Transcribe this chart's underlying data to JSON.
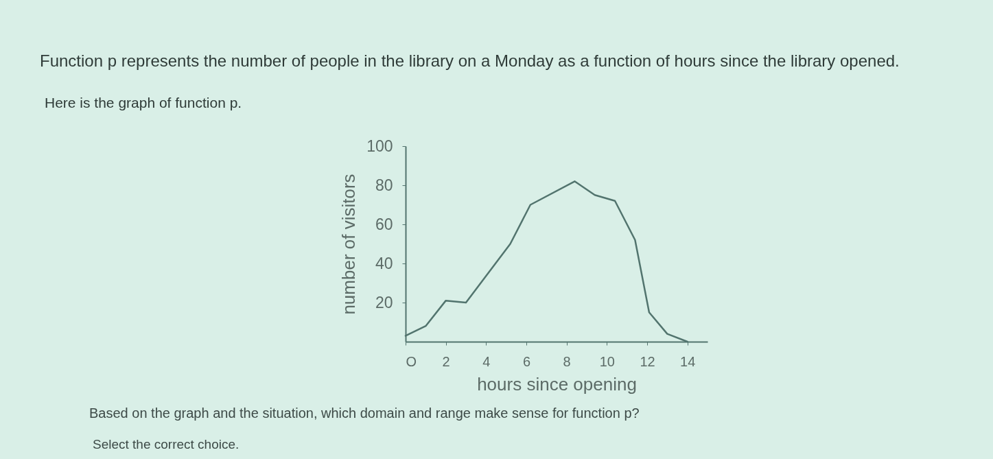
{
  "chart_data": {
    "type": "line",
    "title": "Function p represents the number of people in the library on a Monday as a function of hours since the library opened.",
    "subtitle": "Here is the graph of function p.",
    "xlabel": "hours since opening",
    "ylabel": "number of visitors",
    "x": [
      0,
      1,
      2,
      3,
      5.2,
      6.2,
      8.4,
      9.4,
      10.4,
      11.4,
      12.1,
      13,
      14
    ],
    "series": [
      {
        "color": "#52746e",
        "values": [
          3,
          8,
          21,
          20,
          50,
          70,
          82,
          75,
          72,
          52,
          15,
          4,
          0
        ]
      }
    ],
    "xlim": [
      0,
      15
    ],
    "ylim": [
      0,
      100
    ],
    "xticks": [
      {
        "value": 0,
        "label": "O"
      },
      2,
      4,
      6,
      8,
      10,
      12,
      14
    ],
    "yticks": [
      20,
      40,
      60,
      80,
      100
    ],
    "grid": false,
    "legend": false,
    "marker": "none",
    "line_style": "solid",
    "annotations": [
      "Based on the graph and the situation, which domain and range make sense for function p?",
      "Select the correct choice."
    ]
  }
}
